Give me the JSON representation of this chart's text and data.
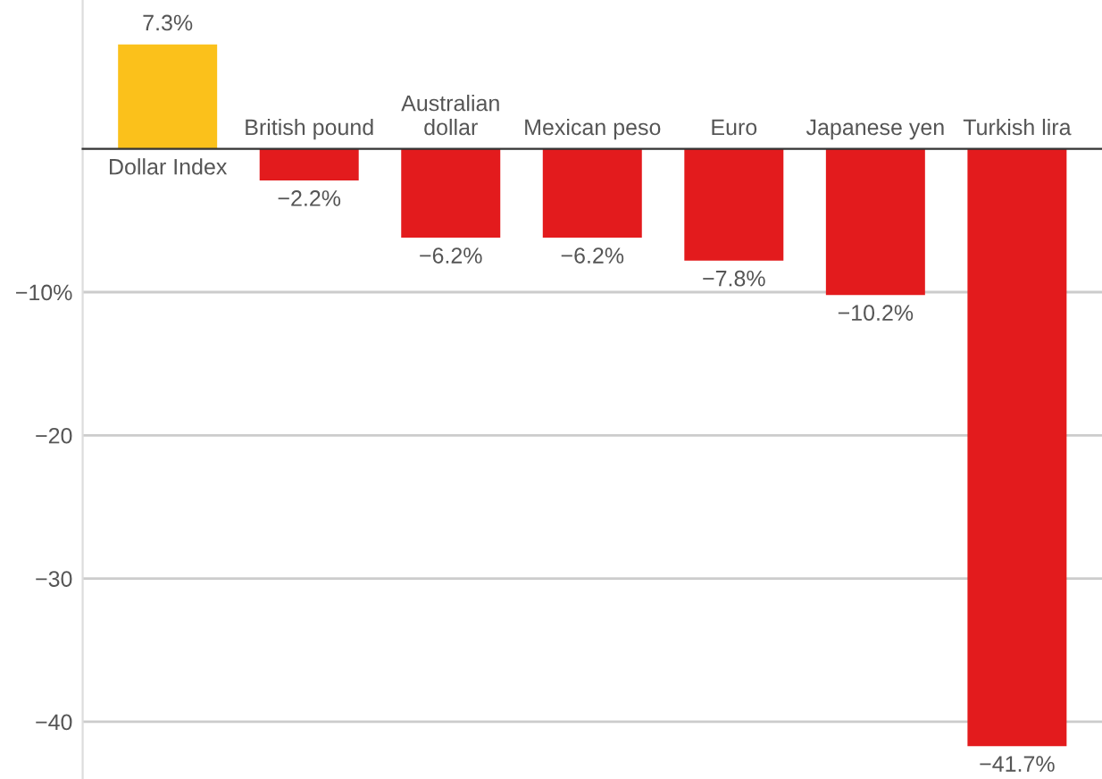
{
  "chart_data": {
    "type": "bar",
    "categories": [
      "Dollar Index",
      "British pound",
      "Australian\ndollar",
      "Mexican peso",
      "Euro",
      "Japanese yen",
      "Turkish lira"
    ],
    "values": [
      7.3,
      -2.2,
      -6.2,
      -6.2,
      -7.8,
      -10.2,
      -41.7
    ],
    "colors": [
      "#fbc11b",
      "#e31b1d",
      "#e31b1d",
      "#e31b1d",
      "#e31b1d",
      "#e31b1d",
      "#e31b1d"
    ],
    "value_labels": [
      "7.3%",
      "−2.2%",
      "−6.2%",
      "−6.2%",
      "−7.8%",
      "−10.2%",
      "−41.7%"
    ],
    "ylim": [
      -44,
      10.4
    ],
    "yticks": [
      {
        "value": -10,
        "label": "−10%"
      },
      {
        "value": -20,
        "label": "−20"
      },
      {
        "value": -30,
        "label": "−30"
      },
      {
        "value": -40,
        "label": "−40"
      }
    ],
    "grid": "y",
    "legend": false
  }
}
